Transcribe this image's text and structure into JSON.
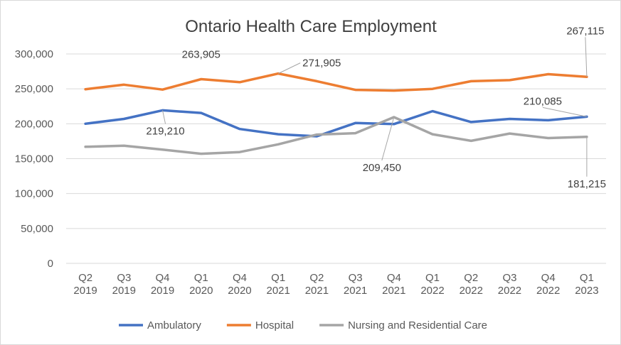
{
  "chart_data": {
    "type": "line",
    "title": "Ontario Health Care Employment",
    "xlabel": "",
    "ylabel": "",
    "ylim": [
      0,
      300000
    ],
    "yticks": [
      "0",
      "50,000",
      "100,000",
      "150,000",
      "200,000",
      "250,000",
      "300,000"
    ],
    "categories": [
      [
        "Q2",
        "2019"
      ],
      [
        "Q3",
        "2019"
      ],
      [
        "Q4",
        "2019"
      ],
      [
        "Q1",
        "2020"
      ],
      [
        "Q4",
        "2020"
      ],
      [
        "Q1",
        "2021"
      ],
      [
        "Q2",
        "2021"
      ],
      [
        "Q3",
        "2021"
      ],
      [
        "Q4",
        "2021"
      ],
      [
        "Q1",
        "2022"
      ],
      [
        "Q2",
        "2022"
      ],
      [
        "Q3",
        "2022"
      ],
      [
        "Q4",
        "2022"
      ],
      [
        "Q1",
        "2023"
      ]
    ],
    "grid": true,
    "legend_position": "bottom",
    "series": [
      {
        "name": "Ambulatory",
        "color": "#4472C4",
        "values": [
          200000,
          207000,
          219210,
          215500,
          192500,
          185000,
          182000,
          201000,
          199500,
          218000,
          202500,
          207000,
          205000,
          210085
        ]
      },
      {
        "name": "Hospital",
        "color": "#ED7D31",
        "values": [
          249500,
          256000,
          249000,
          263905,
          259500,
          271905,
          261000,
          248500,
          247500,
          250000,
          261000,
          262500,
          271000,
          267115
        ]
      },
      {
        "name": "Nursing and Residential Care",
        "color": "#A5A5A5",
        "values": [
          167000,
          168500,
          163000,
          157000,
          159500,
          170500,
          184500,
          186500,
          209450,
          185000,
          175500,
          186000,
          179500,
          181215
        ]
      }
    ],
    "annotations": [
      {
        "text": "263,905",
        "series": 1,
        "index": 3,
        "dx": 0,
        "dy": -30,
        "anchor": "middle",
        "leader": false
      },
      {
        "text": "271,905",
        "series": 1,
        "index": 5,
        "dx": 34,
        "dy": -10,
        "anchor": "start",
        "leader": true
      },
      {
        "text": "267,115",
        "series": 1,
        "index": 13,
        "dx": -2,
        "dy": -60,
        "anchor": "middle",
        "leader": true
      },
      {
        "text": "219,210",
        "series": 0,
        "index": 2,
        "dx": 4,
        "dy": 34,
        "anchor": "middle",
        "leader": true
      },
      {
        "text": "210,085",
        "series": 0,
        "index": 13,
        "dx": -62,
        "dy": -17,
        "anchor": "middle",
        "leader": true
      },
      {
        "text": "209,450",
        "series": 2,
        "index": 8,
        "dx": -17,
        "dy": 76,
        "anchor": "middle",
        "leader": true
      },
      {
        "text": "181,215",
        "series": 2,
        "index": 13,
        "dx": 0,
        "dy": 71,
        "anchor": "middle",
        "leader": true
      }
    ]
  }
}
